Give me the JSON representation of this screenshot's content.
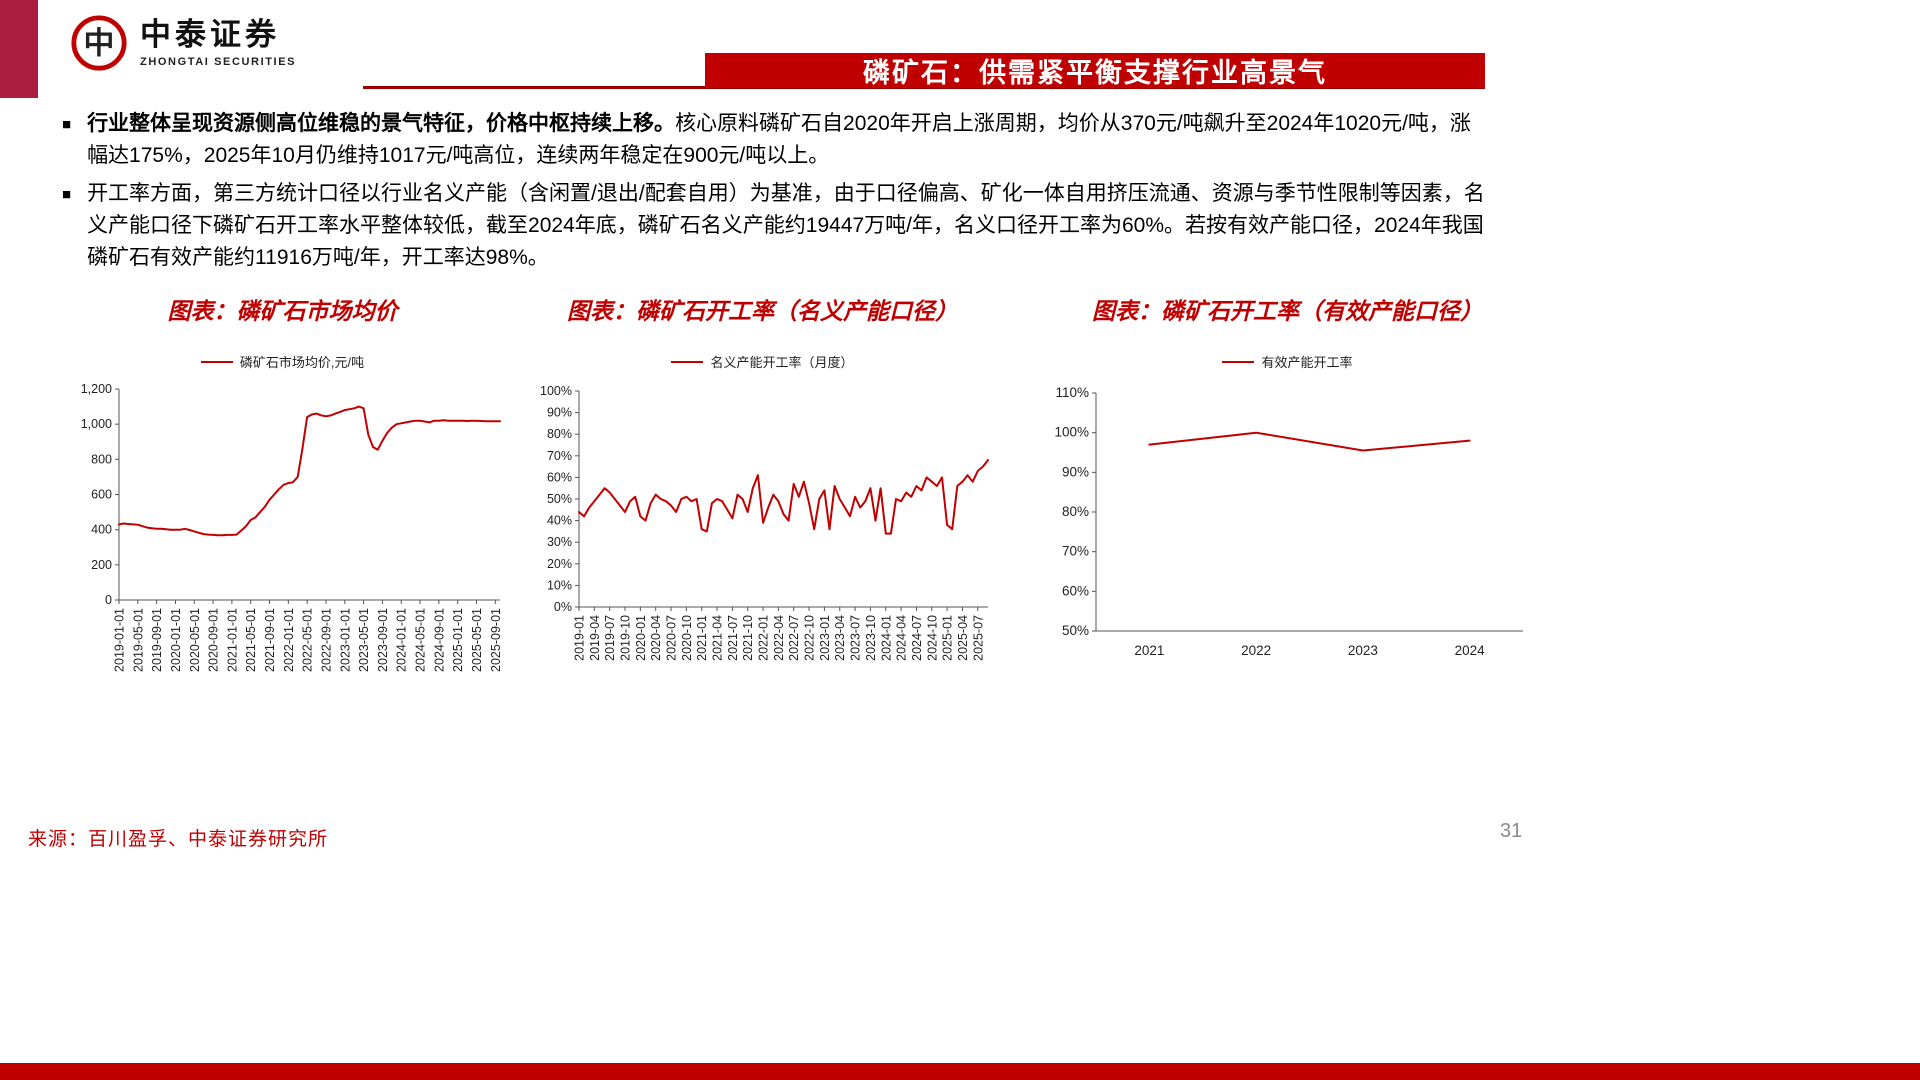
{
  "brand": {
    "logo_text": "中泰证券",
    "logo_subtext": "ZHONGTAI SECURITIES",
    "accent_red": "#C00000",
    "corner_red": "#A81E3C",
    "rule_red": "#990000"
  },
  "header": {
    "title": "磷矿石：供需紧平衡支撑行业高景气"
  },
  "bullets": [
    {
      "bold": "行业整体呈现资源侧高位维稳的景气特征，价格中枢持续上移。",
      "text": "核心原料磷矿石自2020年开启上涨周期，均价从370元/吨飙升至2024年1020元/吨，涨幅达175%，2025年10月仍维持1017元/吨高位，连续两年稳定在900元/吨以上。"
    },
    {
      "bold": "",
      "text": "开工率方面，第三方统计口径以行业名义产能（含闲置/退出/配套自用）为基准，由于口径偏高、矿化一体自用挤压流通、资源与季节性限制等因素，名义产能口径下磷矿石开工率水平整体较低，截至2024年底，磷矿石名义产能约19447万吨/年，名义口径开工率为60%。若按有效产能口径，2024年我国磷矿石有效产能约11916万吨/年，开工率达98%。"
    }
  ],
  "chart_data": [
    {
      "type": "line",
      "title": "图表：磷矿石市场均价",
      "legend": "磷矿石市场均价,元/吨",
      "color": "#C00000",
      "ylim": [
        0,
        1200
      ],
      "yticks": [
        0,
        200,
        400,
        600,
        800,
        1000,
        1200
      ],
      "ytick_labels": [
        "0",
        "200",
        "400",
        "600",
        "800",
        "1,000",
        "1,200"
      ],
      "x_start": "2019-01",
      "x_tick_step": 4,
      "x_tick_labels": [
        "2019-01-01",
        "2019-05-01",
        "2019-09-01",
        "2020-01-01",
        "2020-05-01",
        "2020-09-01",
        "2021-01-01",
        "2021-05-01",
        "2021-09-01",
        "2022-01-01",
        "2022-05-01",
        "2022-09-01",
        "2023-01-01",
        "2023-05-01",
        "2023-09-01",
        "2024-01-01",
        "2024-05-01",
        "2024-09-01",
        "2025-01-01",
        "2025-05-01",
        "2025-09-01"
      ],
      "values": [
        430,
        435,
        432,
        430,
        428,
        420,
        412,
        408,
        405,
        405,
        402,
        400,
        400,
        400,
        405,
        398,
        390,
        382,
        375,
        372,
        370,
        368,
        368,
        370,
        370,
        372,
        395,
        420,
        455,
        470,
        500,
        530,
        570,
        600,
        630,
        655,
        665,
        670,
        700,
        860,
        1040,
        1055,
        1060,
        1050,
        1045,
        1050,
        1060,
        1070,
        1080,
        1085,
        1090,
        1100,
        1090,
        940,
        870,
        855,
        905,
        950,
        980,
        1000,
        1005,
        1010,
        1015,
        1020,
        1020,
        1015,
        1010,
        1020,
        1020,
        1022,
        1020,
        1020,
        1020,
        1020,
        1018,
        1020,
        1020,
        1018,
        1017,
        1017,
        1017,
        1017
      ]
    },
    {
      "type": "line",
      "title": "图表：磷矿石开工率（名义产能口径）",
      "legend": "名义产能开工率（月度）",
      "color": "#C00000",
      "ylim": [
        0,
        100
      ],
      "yticks": [
        0,
        10,
        20,
        30,
        40,
        50,
        60,
        70,
        80,
        90,
        100
      ],
      "ytick_labels": [
        "0%",
        "10%",
        "20%",
        "30%",
        "40%",
        "50%",
        "60%",
        "70%",
        "80%",
        "90%",
        "100%"
      ],
      "x_start": "2019-01",
      "x_tick_step": 3,
      "x_tick_labels": [
        "2019-01",
        "2019-04",
        "2019-07",
        "2019-10",
        "2020-01",
        "2020-04",
        "2020-07",
        "2020-10",
        "2021-01",
        "2021-04",
        "2021-07",
        "2021-10",
        "2022-01",
        "2022-04",
        "2022-07",
        "2022-10",
        "2023-01",
        "2023-04",
        "2023-07",
        "2023-10",
        "2024-01",
        "2024-04",
        "2024-07",
        "2024-10",
        "2025-01",
        "2025-04",
        "2025-07"
      ],
      "values": [
        44,
        42,
        46,
        49,
        52,
        55,
        53,
        50,
        47,
        44,
        49,
        51,
        42,
        40,
        48,
        52,
        50,
        49,
        47,
        44,
        50,
        51,
        49,
        50,
        36,
        35,
        48,
        50,
        49,
        45,
        41,
        52,
        50,
        44,
        55,
        61,
        39,
        46,
        52,
        49,
        43,
        40,
        57,
        51,
        58,
        48,
        36,
        50,
        54,
        36,
        56,
        50,
        46,
        42,
        51,
        46,
        49,
        55,
        40,
        55,
        34,
        34,
        50,
        49,
        53,
        51,
        56,
        54,
        60,
        58,
        56,
        60,
        38,
        36,
        56,
        58,
        61,
        58,
        63,
        65,
        68
      ]
    },
    {
      "type": "line",
      "title": "图表：磷矿石开工率（有效产能口径）",
      "legend": "有效产能开工率",
      "color": "#C00000",
      "ylim": [
        50,
        110
      ],
      "yticks": [
        50,
        60,
        70,
        80,
        90,
        100,
        110
      ],
      "ytick_labels": [
        "50%",
        "60%",
        "70%",
        "80%",
        "90%",
        "100%",
        "110%"
      ],
      "categories": [
        "2021",
        "2022",
        "2023",
        "2024"
      ],
      "values": [
        97,
        100,
        95.5,
        98
      ]
    }
  ],
  "footer": {
    "source": "来源：百川盈孚、中泰证券研究所",
    "page": "31"
  }
}
